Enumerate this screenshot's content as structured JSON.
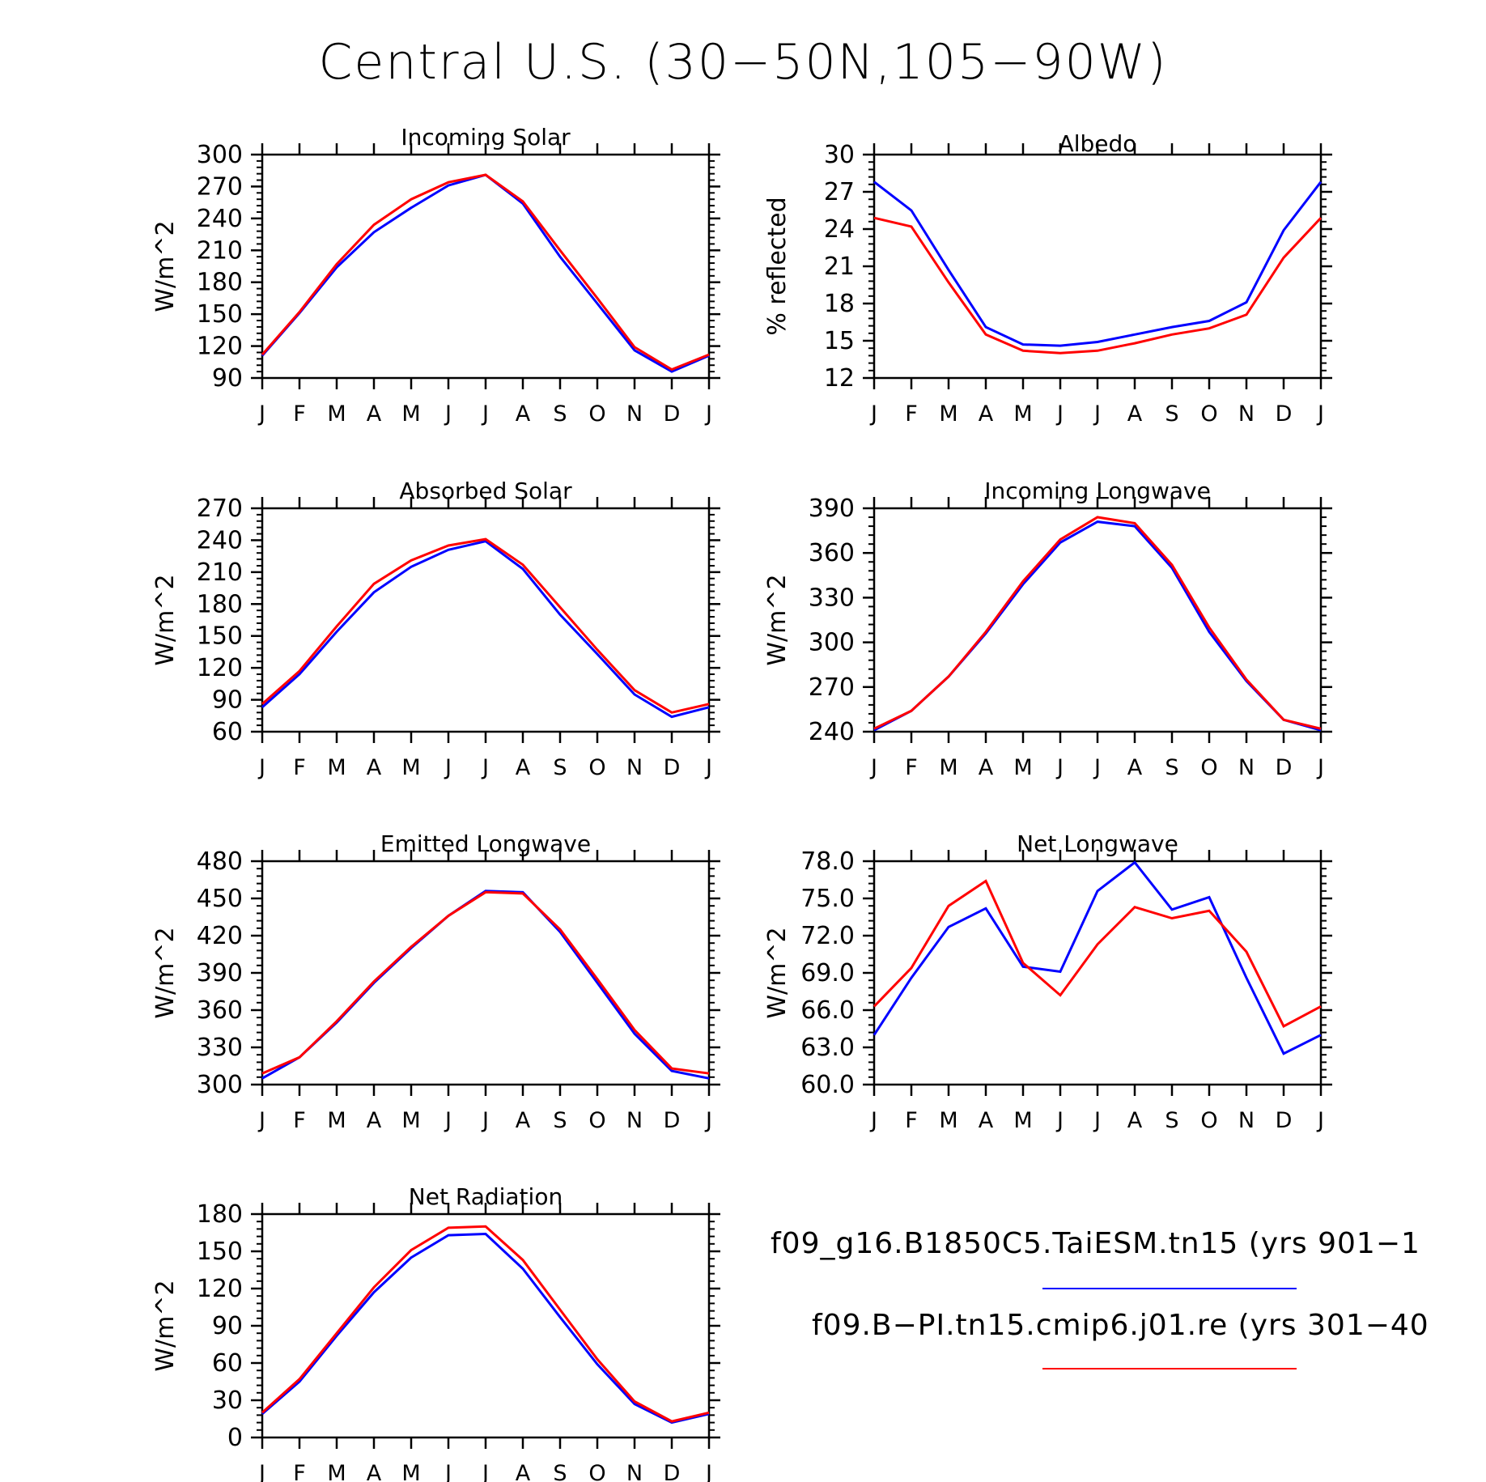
{
  "title": "Central U.S. (30−50N,105−90W)",
  "months": [
    "J",
    "F",
    "M",
    "A",
    "M",
    "J",
    "J",
    "A",
    "S",
    "O",
    "N",
    "D",
    "J"
  ],
  "legend": {
    "entries": [
      {
        "label": "f09_g16.B1850C5.TaiESM.tn15 (yrs 901−1",
        "color": "#0000ff"
      },
      {
        "label": "f09.B−PI.tn15.cmip6.j01.re (yrs 301−40",
        "color": "#ff0000"
      }
    ]
  },
  "colors": {
    "series_blue": "#0000ff",
    "series_red": "#ff0000",
    "axis": "#000000"
  },
  "chart_data": [
    {
      "type": "line",
      "title": "Incoming Solar",
      "ylabel": "W/m^2",
      "ylim": [
        90,
        300
      ],
      "yticks": [
        90,
        120,
        150,
        180,
        210,
        240,
        270,
        300
      ],
      "ytick_labels": [
        "90",
        "120",
        "150",
        "180",
        "210",
        "240",
        "270",
        "300"
      ],
      "series": [
        {
          "color": "#0000ff",
          "values": [
            111,
            151,
            194,
            227,
            250,
            271,
            281,
            254,
            204,
            160,
            116,
            96,
            111
          ]
        },
        {
          "color": "#ff0000",
          "values": [
            112,
            152,
            197,
            234,
            258,
            274,
            281,
            256,
            210,
            165,
            119,
            98,
            112
          ]
        }
      ]
    },
    {
      "type": "line",
      "title": "Albedo",
      "ylabel": "% reflected",
      "ylim": [
        12,
        30
      ],
      "yticks": [
        12,
        15,
        18,
        21,
        24,
        27,
        30
      ],
      "ytick_labels": [
        "12",
        "15",
        "18",
        "21",
        "24",
        "27",
        "30"
      ],
      "series": [
        {
          "color": "#0000ff",
          "values": [
            27.8,
            25.5,
            20.7,
            16.1,
            14.7,
            14.6,
            14.9,
            15.5,
            16.1,
            16.6,
            18.1,
            23.9,
            27.8
          ]
        },
        {
          "color": "#ff0000",
          "values": [
            24.9,
            24.2,
            19.7,
            15.5,
            14.2,
            14.0,
            14.2,
            14.8,
            15.5,
            16.0,
            17.1,
            21.7,
            24.9
          ]
        }
      ]
    },
    {
      "type": "line",
      "title": "Absorbed Solar",
      "ylabel": "W/m^2",
      "ylim": [
        60,
        270
      ],
      "yticks": [
        60,
        90,
        120,
        150,
        180,
        210,
        240,
        270
      ],
      "ytick_labels": [
        "60",
        "90",
        "120",
        "150",
        "180",
        "210",
        "240",
        "270"
      ],
      "series": [
        {
          "color": "#0000ff",
          "values": [
            83,
            114,
            154,
            191,
            215,
            231,
            239,
            213,
            170,
            133,
            95,
            74,
            83
          ]
        },
        {
          "color": "#ff0000",
          "values": [
            86,
            117,
            159,
            199,
            221,
            235,
            241,
            217,
            177,
            137,
            99,
            78,
            86
          ]
        }
      ]
    },
    {
      "type": "line",
      "title": "Incoming Longwave",
      "ylabel": "W/m^2",
      "ylim": [
        240,
        390
      ],
      "yticks": [
        240,
        270,
        300,
        330,
        360,
        390
      ],
      "ytick_labels": [
        "240",
        "270",
        "300",
        "330",
        "360",
        "390"
      ],
      "series": [
        {
          "color": "#0000ff",
          "values": [
            241,
            254,
            277,
            306,
            339,
            367,
            381,
            378,
            350,
            307,
            274,
            248,
            241
          ]
        },
        {
          "color": "#ff0000",
          "values": [
            242,
            254,
            277,
            307,
            341,
            369,
            384,
            380,
            352,
            310,
            275,
            248,
            242
          ]
        }
      ]
    },
    {
      "type": "line",
      "title": "Emitted Longwave",
      "ylabel": "W/m^2",
      "ylim": [
        300,
        480
      ],
      "yticks": [
        300,
        330,
        360,
        390,
        420,
        450,
        480
      ],
      "ytick_labels": [
        "300",
        "330",
        "360",
        "390",
        "420",
        "450",
        "480"
      ],
      "series": [
        {
          "color": "#0000ff",
          "values": [
            305,
            322,
            350,
            382,
            410,
            436,
            456,
            455,
            423,
            382,
            341,
            311,
            305
          ]
        },
        {
          "color": "#ff0000",
          "values": [
            309,
            322,
            351,
            383,
            411,
            436,
            455,
            454,
            425,
            385,
            344,
            313,
            309
          ]
        }
      ]
    },
    {
      "type": "line",
      "title": "Net Longwave",
      "ylabel": "W/m^2",
      "ylim": [
        60,
        78
      ],
      "yticks": [
        60,
        63,
        66,
        69,
        72,
        75,
        78
      ],
      "ytick_labels": [
        "60.0",
        "63.0",
        "66.0",
        "69.0",
        "72.0",
        "75.0",
        "78.0"
      ],
      "series": [
        {
          "color": "#0000ff",
          "values": [
            64.0,
            68.6,
            72.7,
            74.2,
            69.5,
            69.1,
            75.6,
            77.9,
            74.1,
            75.1,
            68.6,
            62.5,
            64.0
          ]
        },
        {
          "color": "#ff0000",
          "values": [
            66.3,
            69.4,
            74.4,
            76.4,
            69.8,
            67.2,
            71.3,
            74.3,
            73.4,
            74.0,
            70.7,
            64.7,
            66.3
          ]
        }
      ]
    },
    {
      "type": "line",
      "title": "Net Radiation",
      "ylabel": "W/m^2",
      "ylim": [
        0,
        180
      ],
      "yticks": [
        0,
        30,
        60,
        90,
        120,
        150,
        180
      ],
      "ytick_labels": [
        "0",
        "30",
        "60",
        "90",
        "120",
        "150",
        "180"
      ],
      "series": [
        {
          "color": "#0000ff",
          "values": [
            19,
            45,
            82,
            117,
            145,
            163,
            164,
            136,
            97,
            59,
            27,
            12,
            19
          ]
        },
        {
          "color": "#ff0000",
          "values": [
            20,
            47,
            84,
            121,
            151,
            169,
            170,
            143,
            103,
            63,
            29,
            13,
            20
          ]
        }
      ]
    }
  ]
}
